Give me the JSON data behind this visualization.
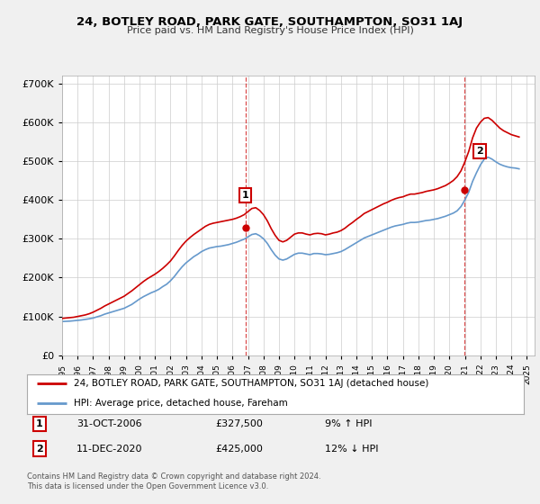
{
  "title": "24, BOTLEY ROAD, PARK GATE, SOUTHAMPTON, SO31 1AJ",
  "subtitle": "Price paid vs. HM Land Registry's House Price Index (HPI)",
  "ytick_values": [
    0,
    100000,
    200000,
    300000,
    400000,
    500000,
    600000,
    700000
  ],
  "ylim": [
    0,
    720000
  ],
  "xlim_start": 1995.0,
  "xlim_end": 2025.5,
  "background_color": "#f0f0f0",
  "plot_bg_color": "#ffffff",
  "grid_color": "#cccccc",
  "red_line_color": "#cc0000",
  "blue_line_color": "#6699cc",
  "point1_x": 2006.83,
  "point1_y": 327500,
  "point1_label": "1",
  "point1_date": "31-OCT-2006",
  "point1_price": "£327,500",
  "point1_hpi": "9% ↑ HPI",
  "point2_x": 2020.95,
  "point2_y": 425000,
  "point2_label": "2",
  "point2_date": "11-DEC-2020",
  "point2_price": "£425,000",
  "point2_hpi": "12% ↓ HPI",
  "legend_line1": "24, BOTLEY ROAD, PARK GATE, SOUTHAMPTON, SO31 1AJ (detached house)",
  "legend_line2": "HPI: Average price, detached house, Fareham",
  "footer": "Contains HM Land Registry data © Crown copyright and database right 2024.\nThis data is licensed under the Open Government Licence v3.0.",
  "hpi_data_x": [
    1995.0,
    1995.25,
    1995.5,
    1995.75,
    1996.0,
    1996.25,
    1996.5,
    1996.75,
    1997.0,
    1997.25,
    1997.5,
    1997.75,
    1998.0,
    1998.25,
    1998.5,
    1998.75,
    1999.0,
    1999.25,
    1999.5,
    1999.75,
    2000.0,
    2000.25,
    2000.5,
    2000.75,
    2001.0,
    2001.25,
    2001.5,
    2001.75,
    2002.0,
    2002.25,
    2002.5,
    2002.75,
    2003.0,
    2003.25,
    2003.5,
    2003.75,
    2004.0,
    2004.25,
    2004.5,
    2004.75,
    2005.0,
    2005.25,
    2005.5,
    2005.75,
    2006.0,
    2006.25,
    2006.5,
    2006.75,
    2007.0,
    2007.25,
    2007.5,
    2007.75,
    2008.0,
    2008.25,
    2008.5,
    2008.75,
    2009.0,
    2009.25,
    2009.5,
    2009.75,
    2010.0,
    2010.25,
    2010.5,
    2010.75,
    2011.0,
    2011.25,
    2011.5,
    2011.75,
    2012.0,
    2012.25,
    2012.5,
    2012.75,
    2013.0,
    2013.25,
    2013.5,
    2013.75,
    2014.0,
    2014.25,
    2014.5,
    2014.75,
    2015.0,
    2015.25,
    2015.5,
    2015.75,
    2016.0,
    2016.25,
    2016.5,
    2016.75,
    2017.0,
    2017.25,
    2017.5,
    2017.75,
    2018.0,
    2018.25,
    2018.5,
    2018.75,
    2019.0,
    2019.25,
    2019.5,
    2019.75,
    2020.0,
    2020.25,
    2020.5,
    2020.75,
    2021.0,
    2021.25,
    2021.5,
    2021.75,
    2022.0,
    2022.25,
    2022.5,
    2022.75,
    2023.0,
    2023.25,
    2023.5,
    2023.75,
    2024.0,
    2024.25,
    2024.5
  ],
  "hpi_data_y": [
    87000,
    87500,
    88000,
    89000,
    90000,
    91000,
    92500,
    94000,
    96000,
    99000,
    102000,
    106000,
    109000,
    112000,
    115000,
    118000,
    121000,
    126000,
    131000,
    138000,
    145000,
    151000,
    156000,
    161000,
    165000,
    170000,
    177000,
    183000,
    192000,
    203000,
    216000,
    228000,
    238000,
    246000,
    254000,
    260000,
    267000,
    272000,
    276000,
    278000,
    280000,
    281000,
    283000,
    285000,
    288000,
    291000,
    295000,
    299000,
    305000,
    311000,
    313000,
    308000,
    300000,
    288000,
    272000,
    258000,
    248000,
    245000,
    248000,
    254000,
    260000,
    263000,
    263000,
    261000,
    259000,
    262000,
    262000,
    261000,
    259000,
    260000,
    262000,
    264000,
    267000,
    272000,
    278000,
    284000,
    290000,
    296000,
    302000,
    306000,
    310000,
    314000,
    318000,
    322000,
    326000,
    330000,
    333000,
    335000,
    337000,
    340000,
    342000,
    342000,
    343000,
    345000,
    347000,
    348000,
    350000,
    352000,
    355000,
    358000,
    362000,
    366000,
    372000,
    383000,
    400000,
    420000,
    448000,
    470000,
    490000,
    505000,
    510000,
    505000,
    498000,
    492000,
    488000,
    485000,
    483000,
    482000,
    480000
  ],
  "red_data_x": [
    1995.0,
    1995.25,
    1995.5,
    1995.75,
    1996.0,
    1996.25,
    1996.5,
    1996.75,
    1997.0,
    1997.25,
    1997.5,
    1997.75,
    1998.0,
    1998.25,
    1998.5,
    1998.75,
    1999.0,
    1999.25,
    1999.5,
    1999.75,
    2000.0,
    2000.25,
    2000.5,
    2000.75,
    2001.0,
    2001.25,
    2001.5,
    2001.75,
    2002.0,
    2002.25,
    2002.5,
    2002.75,
    2003.0,
    2003.25,
    2003.5,
    2003.75,
    2004.0,
    2004.25,
    2004.5,
    2004.75,
    2005.0,
    2005.25,
    2005.5,
    2005.75,
    2006.0,
    2006.25,
    2006.5,
    2006.75,
    2007.0,
    2007.25,
    2007.5,
    2007.75,
    2008.0,
    2008.25,
    2008.5,
    2008.75,
    2009.0,
    2009.25,
    2009.5,
    2009.75,
    2010.0,
    2010.25,
    2010.5,
    2010.75,
    2011.0,
    2011.25,
    2011.5,
    2011.75,
    2012.0,
    2012.25,
    2012.5,
    2012.75,
    2013.0,
    2013.25,
    2013.5,
    2013.75,
    2014.0,
    2014.25,
    2014.5,
    2014.75,
    2015.0,
    2015.25,
    2015.5,
    2015.75,
    2016.0,
    2016.25,
    2016.5,
    2016.75,
    2017.0,
    2017.25,
    2017.5,
    2017.75,
    2018.0,
    2018.25,
    2018.5,
    2018.75,
    2019.0,
    2019.25,
    2019.5,
    2019.75,
    2020.0,
    2020.25,
    2020.5,
    2020.75,
    2021.0,
    2021.25,
    2021.5,
    2021.75,
    2022.0,
    2022.25,
    2022.5,
    2022.75,
    2023.0,
    2023.25,
    2023.5,
    2023.75,
    2024.0,
    2024.25,
    2024.5
  ],
  "red_data_y": [
    95000,
    96000,
    97000,
    98000,
    100000,
    102000,
    104000,
    107000,
    111000,
    116000,
    121000,
    127000,
    132000,
    137000,
    142000,
    147000,
    152000,
    159000,
    166000,
    174000,
    182000,
    190000,
    197000,
    203000,
    209000,
    216000,
    224000,
    233000,
    243000,
    256000,
    270000,
    283000,
    294000,
    303000,
    311000,
    318000,
    325000,
    332000,
    337000,
    340000,
    342000,
    344000,
    346000,
    348000,
    350000,
    353000,
    357000,
    362000,
    370000,
    378000,
    380000,
    373000,
    362000,
    346000,
    326000,
    309000,
    296000,
    292000,
    296000,
    304000,
    312000,
    315000,
    315000,
    312000,
    310000,
    313000,
    314000,
    313000,
    310000,
    312000,
    315000,
    317000,
    321000,
    327000,
    335000,
    342000,
    350000,
    357000,
    365000,
    370000,
    375000,
    380000,
    385000,
    390000,
    394000,
    399000,
    403000,
    406000,
    408000,
    412000,
    415000,
    415000,
    417000,
    419000,
    422000,
    424000,
    426000,
    429000,
    433000,
    437000,
    443000,
    450000,
    460000,
    475000,
    498000,
    525000,
    560000,
    585000,
    600000,
    610000,
    612000,
    605000,
    595000,
    585000,
    578000,
    573000,
    568000,
    565000,
    562000
  ]
}
